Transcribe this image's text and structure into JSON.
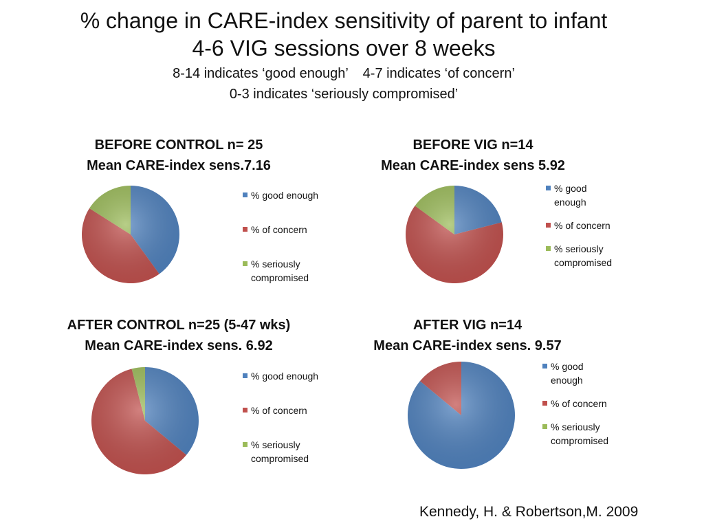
{
  "slide": {
    "title_line1": "% change in CARE-index sensitivity of parent to infant",
    "title_line2": "4-6 VIG sessions over 8 weeks",
    "subtitle_line1_a": "8-14 indicates ‘good enough’",
    "subtitle_line1_b": "4-7 indicates ‘of concern’",
    "subtitle_line2": "0-3 indicates ‘seriously compromised’",
    "citation": "Kennedy, H. & Robertson,M. 2009"
  },
  "colors": {
    "good_enough": "#4f81bd",
    "of_concern": "#c0504d",
    "seriously_compromised": "#9bbb59"
  },
  "chart_data": [
    {
      "type": "pie",
      "title_line1": "BEFORE CONTROL n= 25",
      "title_line2": "Mean CARE-index sens.7.16",
      "labels": [
        "% good enough",
        "% of concern",
        "% seriously compromised"
      ],
      "legend_lines": [
        [
          "% good enough"
        ],
        [
          "% of concern"
        ],
        [
          "% seriously",
          "compromised"
        ]
      ],
      "values": [
        40,
        44,
        16
      ]
    },
    {
      "type": "pie",
      "title_line1": "BEFORE VIG n=14",
      "title_line2": "Mean CARE-index sens 5.92",
      "labels": [
        "% good enough",
        "% of concern",
        "% seriously compromised"
      ],
      "legend_lines": [
        [
          "% good",
          "enough"
        ],
        [
          "% of concern"
        ],
        [
          "% seriously",
          "compromised"
        ]
      ],
      "values": [
        21,
        64,
        15
      ]
    },
    {
      "type": "pie",
      "title_line1": "AFTER CONTROL n=25 (5-47 wks)",
      "title_line2": "Mean CARE-index sens. 6.92",
      "labels": [
        "% good enough",
        "% of concern",
        "% seriously compromised"
      ],
      "legend_lines": [
        [
          "% good enough"
        ],
        [
          "% of concern"
        ],
        [
          "% seriously",
          "compromised"
        ]
      ],
      "values": [
        36,
        60,
        4
      ]
    },
    {
      "type": "pie",
      "title_line1": "AFTER VIG n=14",
      "title_line2": "Mean CARE-index sens. 9.57",
      "labels": [
        "% good enough",
        "% of concern",
        "% seriously compromised"
      ],
      "legend_lines": [
        [
          "% good",
          "enough"
        ],
        [
          "% of concern"
        ],
        [
          "% seriously",
          "compromised"
        ]
      ],
      "values": [
        86,
        14,
        0
      ]
    }
  ]
}
